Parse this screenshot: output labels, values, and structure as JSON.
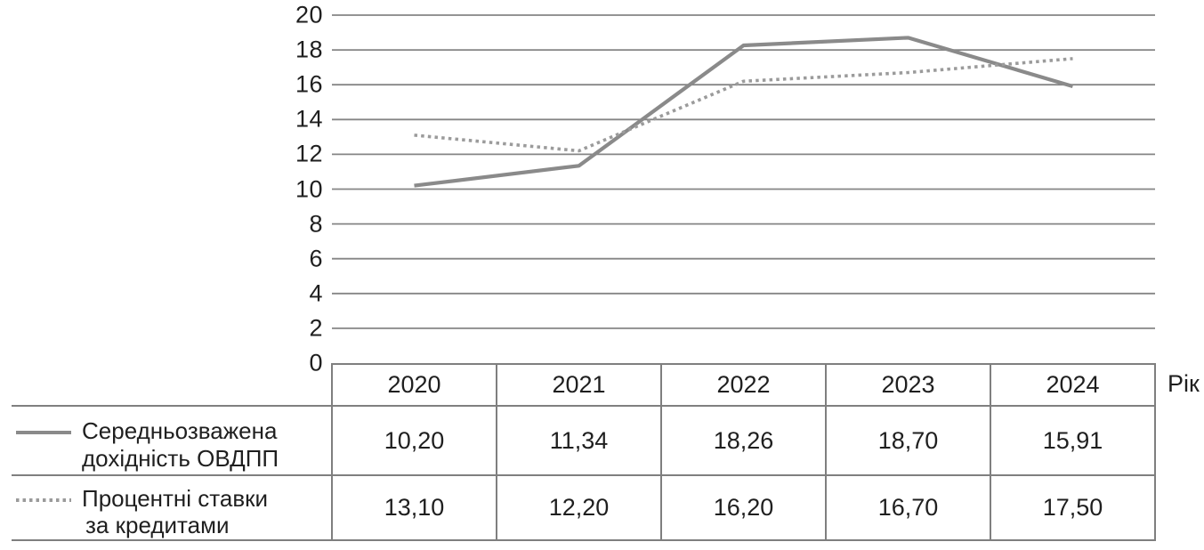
{
  "figure": {
    "x_axis_title": "Рік",
    "colors": {
      "grid": "#858585",
      "line_solid": "#8a8a8a",
      "line_dotted": "#9b9b9b",
      "table_border": "#7f7f7f",
      "text": "#1f1f1f"
    }
  },
  "chart_data": {
    "type": "line",
    "categories": [
      "2020",
      "2021",
      "2022",
      "2023",
      "2024"
    ],
    "series": [
      {
        "name": "Середньозважена дохідність ОВДПП",
        "style": "solid",
        "values": [
          10.2,
          11.34,
          18.26,
          18.7,
          15.91
        ]
      },
      {
        "name": "Процентні ставки за кредитами",
        "style": "dotted",
        "values": [
          13.1,
          12.2,
          16.2,
          16.7,
          17.5
        ]
      }
    ],
    "title": "",
    "xlabel": "Рік",
    "ylabel": "",
    "ylim": [
      0,
      20
    ],
    "yticks": [
      0,
      2,
      4,
      6,
      8,
      10,
      12,
      14,
      16,
      18,
      20
    ],
    "grid": "horizontal",
    "legend_position": "table-left-column"
  },
  "table": {
    "header": [
      "2020",
      "2021",
      "2022",
      "2023",
      "2024"
    ],
    "rows": [
      {
        "legend_lines": [
          "Середньозважена",
          "дохідність ОВДПП"
        ],
        "swatch": "solid-line",
        "cells": [
          "10,20",
          "11,34",
          "18,26",
          "18,70",
          "15,91"
        ]
      },
      {
        "legend_lines": [
          "Процентні ставки",
          "за кредитами"
        ],
        "swatch": "dotted-line",
        "cells": [
          "13,10",
          "12,20",
          "16,20",
          "16,70",
          "17,50"
        ]
      }
    ]
  }
}
